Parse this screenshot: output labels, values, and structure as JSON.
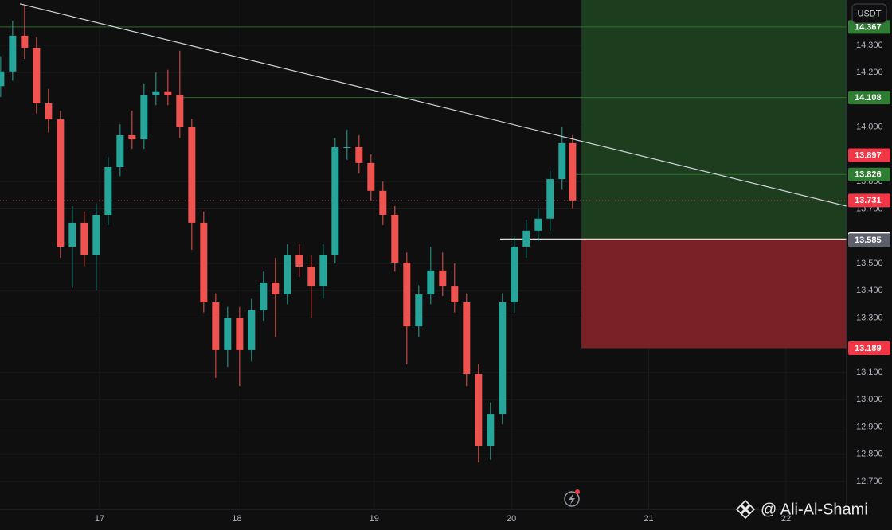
{
  "chart_data": {
    "type": "candlestick",
    "currency": "USDT",
    "watermark": "@ Ali-Al-Shami",
    "x": [
      16.28,
      16.367,
      16.454,
      16.541,
      16.628,
      16.715,
      16.802,
      16.889,
      16.976,
      17.063,
      17.15,
      17.237,
      17.324,
      17.411,
      17.498,
      17.585,
      17.672,
      17.759,
      17.846,
      17.933,
      18.02,
      18.107,
      18.194,
      18.281,
      18.368,
      18.455,
      18.542,
      18.629,
      18.716,
      18.803,
      18.89,
      18.977,
      19.064,
      19.151,
      19.238,
      19.325,
      19.412,
      19.499,
      19.586,
      19.673,
      19.76,
      19.847,
      19.934,
      20.021,
      20.108,
      20.195,
      20.282,
      20.369,
      20.445
    ],
    "open": [
      14.15,
      14.204,
      14.335,
      14.291,
      14.087,
      14.028,
      13.561,
      13.649,
      13.532,
      13.678,
      13.853,
      13.97,
      13.955,
      14.116,
      14.131,
      14.116,
      13.999,
      13.649,
      13.357,
      13.182,
      13.299,
      13.182,
      13.328,
      13.43,
      13.386,
      13.532,
      13.488,
      13.415,
      13.532,
      13.926,
      13.926,
      13.868,
      13.766,
      13.678,
      13.503,
      13.269,
      13.386,
      13.474,
      13.415,
      13.357,
      13.094,
      12.831,
      12.948,
      13.357,
      13.561,
      13.62,
      13.664,
      13.809,
      13.941
    ],
    "high": [
      14.26,
      14.39,
      14.45,
      14.33,
      14.14,
      14.06,
      13.71,
      13.69,
      13.72,
      13.89,
      14.01,
      14.06,
      14.16,
      14.2,
      14.21,
      14.28,
      14.03,
      13.69,
      13.39,
      13.34,
      13.34,
      13.37,
      13.47,
      13.52,
      13.57,
      13.57,
      13.53,
      13.57,
      13.96,
      13.99,
      13.97,
      13.9,
      13.8,
      13.71,
      13.54,
      13.42,
      13.56,
      13.54,
      13.5,
      13.39,
      13.13,
      12.99,
      13.39,
      13.6,
      13.66,
      13.7,
      13.84,
      14.0,
      13.97
    ],
    "low": [
      14.11,
      14.17,
      14.25,
      14.05,
      13.98,
      13.52,
      13.41,
      13.49,
      13.4,
      13.64,
      13.82,
      13.92,
      13.92,
      14.08,
      14.08,
      13.96,
      13.55,
      13.32,
      13.08,
      13.12,
      13.05,
      13.14,
      13.29,
      13.23,
      13.35,
      13.45,
      13.3,
      13.37,
      13.5,
      13.88,
      13.83,
      13.73,
      13.64,
      13.47,
      13.13,
      13.23,
      13.35,
      13.38,
      13.32,
      13.05,
      12.77,
      12.78,
      12.91,
      13.32,
      13.52,
      13.58,
      13.62,
      13.77,
      13.7
    ],
    "close": [
      14.204,
      14.335,
      14.291,
      14.087,
      14.028,
      13.561,
      13.649,
      13.532,
      13.678,
      13.853,
      13.97,
      13.955,
      14.116,
      14.131,
      14.116,
      13.999,
      13.649,
      13.357,
      13.182,
      13.299,
      13.182,
      13.328,
      13.43,
      13.386,
      13.532,
      13.488,
      13.415,
      13.532,
      13.926,
      13.926,
      13.868,
      13.766,
      13.678,
      13.503,
      13.269,
      13.386,
      13.474,
      13.415,
      13.357,
      13.094,
      12.831,
      12.948,
      13.357,
      13.561,
      13.62,
      13.664,
      13.809,
      13.941,
      13.731
    ],
    "up_color": "#26a69a",
    "down_color": "#ef5350",
    "xlim": [
      16.275,
      22.441
    ],
    "xticks": [
      17,
      18,
      19,
      20,
      21,
      22
    ],
    "ylim": [
      12.598,
      14.466
    ],
    "yticks": [
      {
        "value": 14.3,
        "label": "14.300"
      },
      {
        "value": 14.2,
        "label": "14.200"
      },
      {
        "value": 14.0,
        "label": "14.000"
      },
      {
        "value": 13.8,
        "label": "13.800"
      },
      {
        "value": 13.7,
        "label": "13.700"
      },
      {
        "value": 13.5,
        "label": "13.500"
      },
      {
        "value": 13.4,
        "label": "13.400"
      },
      {
        "value": 13.3,
        "label": "13.300"
      },
      {
        "value": 13.1,
        "label": "13.100"
      },
      {
        "value": 13.0,
        "label": "13.000"
      },
      {
        "value": 12.9,
        "label": "12.900"
      },
      {
        "value": 12.8,
        "label": "12.800"
      },
      {
        "value": 12.7,
        "label": "12.700"
      }
    ],
    "grid": true,
    "trendline": {
      "x": [
        16.42,
        22.441
      ],
      "y": [
        14.452,
        13.71
      ],
      "color": "#d1d4dc"
    },
    "position": {
      "start": 20.51,
      "entry": 13.589,
      "stop": 13.189,
      "profit_color": "#1c3d1e",
      "loss_color": "#7a2128"
    },
    "levels": [
      {
        "value": 14.367,
        "color": "#2e7d32",
        "line_start": 16.275
      },
      {
        "value": 14.108,
        "color": "#2e7d32",
        "line_start": 17.609
      },
      {
        "value": 13.897,
        "color": "#f23645"
      },
      {
        "value": 13.826,
        "color": "#2e7d32",
        "line_start": 20.45
      },
      {
        "value": 13.731,
        "color": "#f23645",
        "line_start": 16.275,
        "line_style": "dotted"
      },
      {
        "value": 13.589,
        "color": "#ffffff",
        "text_color": "#131722",
        "line_start": 19.918
      },
      {
        "value": 13.585,
        "color": "#5d606b"
      },
      {
        "value": 13.189,
        "color": "#f23645"
      }
    ]
  }
}
